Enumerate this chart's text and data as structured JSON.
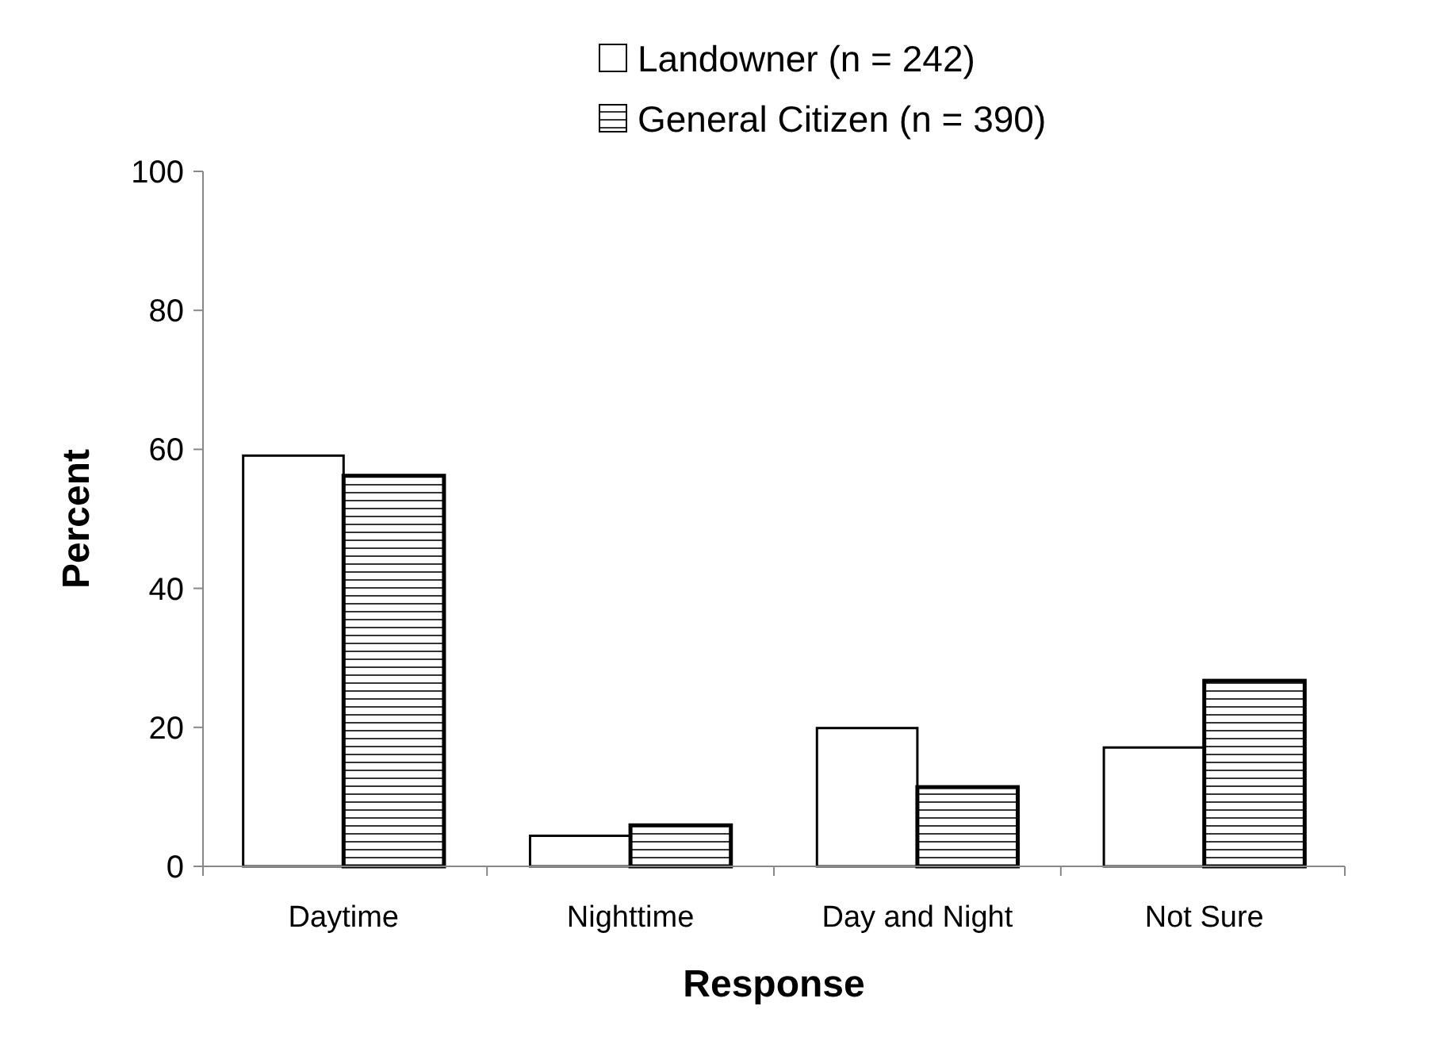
{
  "chart_data": {
    "type": "bar",
    "xlabel": "Response",
    "ylabel": "Percent",
    "categories": [
      "Daytime",
      "Nighttime",
      "Day and Night",
      "Not Sure"
    ],
    "series": [
      {
        "name": "Landowner (n = 242)",
        "color": "#ffffff",
        "values": [
          59.1,
          4.4,
          19.9,
          17.1
        ]
      },
      {
        "name": "General Citizen (n = 390)",
        "color": "#000000",
        "values": [
          56.2,
          5.9,
          11.4,
          26.7
        ]
      }
    ],
    "ylim": [
      0,
      100
    ],
    "yticks": [
      0,
      20,
      40,
      60,
      80,
      100
    ],
    "grid": false,
    "legend": "top right"
  }
}
